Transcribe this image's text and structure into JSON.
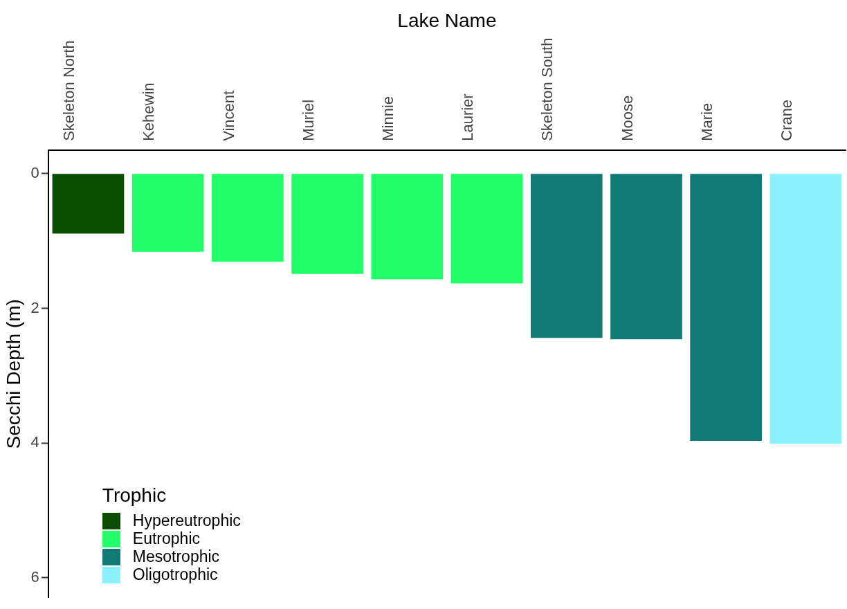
{
  "chart_data": {
    "type": "bar",
    "xlabel": "Lake Name",
    "ylabel": "Secchi Depth (m)",
    "legend_title": "Trophic",
    "categories": [
      "Skeleton North",
      "Kehewin",
      "Vincent",
      "Muriel",
      "Minnie",
      "Laurier",
      "Skeleton South",
      "Moose",
      "Marie",
      "Crane"
    ],
    "series": [
      {
        "name": "Hypereutrophic",
        "color": "#0b4d00",
        "values": [
          0.89,
          null,
          null,
          null,
          null,
          null,
          null,
          null,
          null,
          null
        ]
      },
      {
        "name": "Eutrophic",
        "color": "#22ff6b",
        "values": [
          null,
          1.16,
          1.31,
          1.49,
          1.57,
          1.63,
          null,
          null,
          null,
          null
        ]
      },
      {
        "name": "Mesotrophic",
        "color": "#117a76",
        "values": [
          null,
          null,
          null,
          null,
          null,
          null,
          2.44,
          2.46,
          3.97,
          null
        ]
      },
      {
        "name": "Oligotrophic",
        "color": "#8af1fd",
        "values": [
          null,
          null,
          null,
          null,
          null,
          null,
          null,
          null,
          null,
          4.01
        ]
      }
    ],
    "stacked": true,
    "ylim": [
      6.3,
      -0.35
    ],
    "yticks": [
      0,
      2,
      4,
      6
    ],
    "grid": false,
    "legend": "bottom left"
  }
}
